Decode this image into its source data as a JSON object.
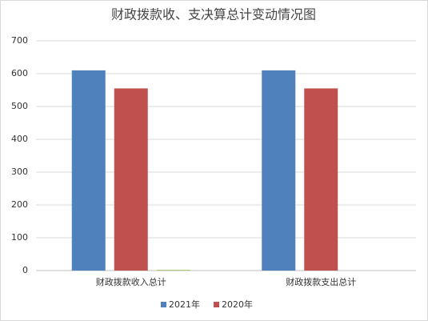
{
  "chart_data": {
    "type": "bar",
    "title": "财政拨款收、支决算总计变动情况图",
    "categories": [
      "财政拨款收入总计",
      "财政拨款支出总计"
    ],
    "series": [
      {
        "name": "2021年",
        "color": "#4f81bd",
        "values": [
          610,
          610
        ]
      },
      {
        "name": "2020年",
        "color": "#c0504d",
        "values": [
          555,
          555
        ]
      },
      {
        "name": null,
        "color": "#9bbb59",
        "values": [
          2,
          null
        ]
      }
    ],
    "ylim": [
      0,
      700
    ],
    "yticks": [
      0,
      100,
      200,
      300,
      400,
      500,
      600,
      700
    ],
    "grid": true
  }
}
